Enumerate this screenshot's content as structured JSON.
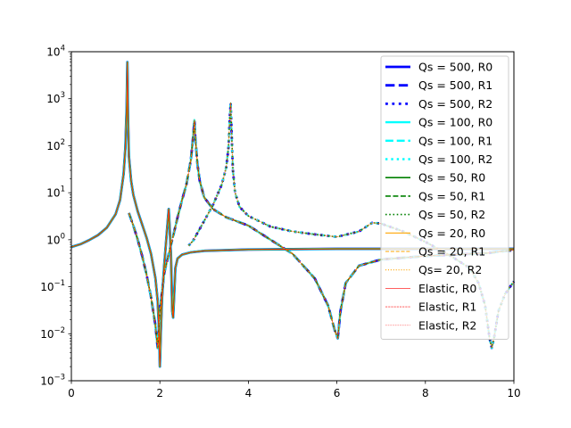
{
  "chart_data": {
    "type": "line",
    "title": "",
    "xlabel": "",
    "ylabel": "",
    "xlim": [
      0,
      10
    ],
    "ylim": [
      0.001,
      10000
    ],
    "yscale": "log",
    "grid": false,
    "legend_placement": "top-right",
    "x_ticks": [
      0,
      2,
      4,
      6,
      8,
      10
    ],
    "x_tick_labels": [
      "0",
      "2",
      "4",
      "6",
      "8",
      "10"
    ],
    "y_tick_labels": [
      {
        "value": 0.001,
        "base": "10",
        "exp": "−3"
      },
      {
        "value": 0.01,
        "base": "10",
        "exp": "−2"
      },
      {
        "value": 0.1,
        "base": "10",
        "exp": "−1"
      },
      {
        "value": 1,
        "base": "10",
        "exp": "0"
      },
      {
        "value": 10,
        "base": "10",
        "exp": "1"
      },
      {
        "value": 100,
        "base": "10",
        "exp": "2"
      },
      {
        "value": 1000,
        "base": "10",
        "exp": "3"
      },
      {
        "value": 10000,
        "base": "10",
        "exp": "4"
      }
    ],
    "series": [
      {
        "name": "Qs = 500, R0",
        "color": "#0000ff",
        "style": "solid",
        "width": 2.8
      },
      {
        "name": "Qs = 500, R1",
        "color": "#0000ff",
        "style": "dashed",
        "width": 2.8
      },
      {
        "name": "Qs = 500, R2",
        "color": "#0000ff",
        "style": "dotted",
        "width": 2.8
      },
      {
        "name": "Qs = 100, R0",
        "color": "#00ffff",
        "style": "solid",
        "width": 2.4
      },
      {
        "name": "Qs = 100, R1",
        "color": "#00ffff",
        "style": "dashed",
        "width": 2.4
      },
      {
        "name": "Qs = 100, R2",
        "color": "#00ffff",
        "style": "dotted",
        "width": 2.4
      },
      {
        "name": "Qs = 50, R0",
        "color": "#008000",
        "style": "solid",
        "width": 1.6
      },
      {
        "name": "Qs = 50, R1",
        "color": "#008000",
        "style": "dashed",
        "width": 1.6
      },
      {
        "name": "Qs = 50, R2",
        "color": "#008000",
        "style": "dotted",
        "width": 1.6
      },
      {
        "name": "Qs = 20, R0",
        "color": "#ffa500",
        "style": "solid",
        "width": 1.1
      },
      {
        "name": "Qs = 20, R1",
        "color": "#ffa500",
        "style": "dashed",
        "width": 1.1
      },
      {
        "name": "Qs= 20, R2",
        "color": "#ffa500",
        "style": "dotted",
        "width": 1.1
      },
      {
        "name": "Elastic, R0",
        "color": "#ff0000",
        "style": "solid",
        "width": 0.6
      },
      {
        "name": "Elastic, R1",
        "color": "#ff0000",
        "style": "dashed",
        "width": 0.6
      },
      {
        "name": "Elastic, R2",
        "color": "#ff0000",
        "style": "dotted",
        "width": 0.6
      }
    ],
    "curves": {
      "R0": {
        "x": [
          0.0,
          0.2,
          0.4,
          0.6,
          0.8,
          1.0,
          1.1,
          1.18,
          1.22,
          1.25,
          1.265,
          1.28,
          1.3,
          1.35,
          1.4,
          1.5,
          1.6,
          1.7,
          1.8,
          1.9,
          1.95,
          1.98,
          2.0,
          2.02,
          2.05,
          2.1,
          2.15,
          2.2,
          2.25,
          2.28,
          2.3,
          2.35,
          2.4,
          2.5,
          2.7,
          3.0,
          3.5,
          4.0,
          5.0,
          6.0,
          8.0,
          10.0
        ],
        "y": [
          0.7,
          0.8,
          0.98,
          1.25,
          1.8,
          3.5,
          7.0,
          25.0,
          90.0,
          700.0,
          6000.0,
          400.0,
          60.0,
          18.0,
          9.0,
          4.0,
          2.1,
          1.1,
          0.5,
          0.15,
          0.05,
          0.012,
          0.002,
          0.01,
          0.06,
          0.3,
          1.2,
          4.5,
          0.5,
          0.03,
          0.022,
          0.25,
          0.4,
          0.48,
          0.54,
          0.58,
          0.6,
          0.62,
          0.63,
          0.64,
          0.64,
          0.64
        ]
      },
      "R1": {
        "x": [
          1.3,
          1.4,
          1.5,
          1.6,
          1.7,
          1.8,
          1.9,
          1.95,
          2.0,
          2.05,
          2.1,
          2.2,
          2.3,
          2.4,
          2.5,
          2.6,
          2.7,
          2.75,
          2.78,
          2.8,
          2.85,
          2.9,
          3.0,
          3.2,
          3.5,
          4.0,
          4.5,
          5.0,
          5.5,
          5.8,
          5.95,
          6.02,
          6.08,
          6.2,
          6.5,
          7.0,
          8.0,
          9.0,
          9.4,
          9.5,
          9.6,
          10.0
        ],
        "y": [
          3.7,
          2.0,
          1.0,
          0.45,
          0.18,
          0.06,
          0.015,
          0.005,
          0.03,
          0.08,
          0.2,
          0.5,
          1.2,
          3.0,
          7.0,
          15.0,
          50.0,
          150.0,
          350.0,
          150.0,
          40.0,
          18.0,
          8.0,
          4.5,
          3.0,
          2.0,
          1.0,
          0.5,
          0.15,
          0.04,
          0.012,
          0.008,
          0.03,
          0.12,
          0.28,
          0.38,
          0.45,
          0.5,
          0.52,
          0.53,
          0.55,
          0.6
        ]
      },
      "R2": {
        "x": [
          2.65,
          2.75,
          2.85,
          3.0,
          3.2,
          3.4,
          3.5,
          3.55,
          3.58,
          3.6,
          3.62,
          3.65,
          3.7,
          3.8,
          4.0,
          4.5,
          5.0,
          5.5,
          6.0,
          6.5,
          6.8,
          7.0,
          7.5,
          8.0,
          8.5,
          9.0,
          9.2,
          9.35,
          9.45,
          9.5,
          9.55,
          9.65,
          9.8,
          10.0
        ],
        "y": [
          0.75,
          0.95,
          1.4,
          2.5,
          5.5,
          15.0,
          35.0,
          90.0,
          400.0,
          800.0,
          200.0,
          30.0,
          10.0,
          5.0,
          3.2,
          1.9,
          1.5,
          1.3,
          1.15,
          1.5,
          2.3,
          2.2,
          1.5,
          0.9,
          0.5,
          0.25,
          0.12,
          0.04,
          0.008,
          0.005,
          0.008,
          0.03,
          0.07,
          0.13
        ]
      }
    }
  }
}
